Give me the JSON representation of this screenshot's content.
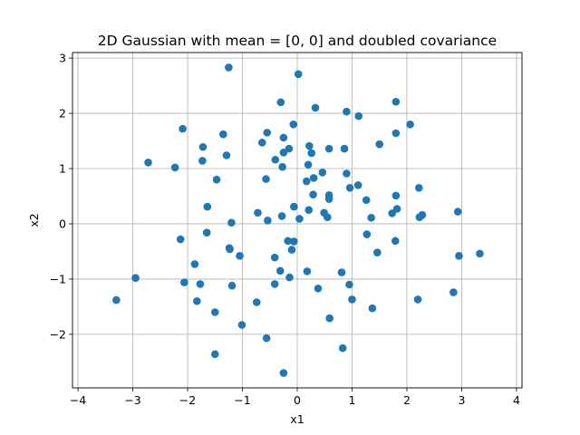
{
  "chart_data": {
    "type": "scatter",
    "title": "2D Gaussian with mean = [0, 0] and doubled covariance",
    "xlabel": "x1",
    "ylabel": "x2",
    "xlim": [
      -4.1,
      4.1
    ],
    "ylim": [
      -2.97,
      3.1
    ],
    "xticks": [
      -4,
      -3,
      -2,
      -1,
      0,
      1,
      2,
      3,
      4
    ],
    "yticks": [
      -2,
      -1,
      0,
      1,
      2,
      3
    ],
    "xtick_labels": [
      "−4",
      "−3",
      "−2",
      "−1",
      "0",
      "1",
      "2",
      "3",
      "4"
    ],
    "ytick_labels": [
      "−2",
      "−1",
      "0",
      "1",
      "2",
      "3"
    ],
    "grid": true,
    "marker_color": "#1f77b4",
    "points": [
      [
        -1.25,
        2.83
      ],
      [
        0.02,
        2.71
      ],
      [
        -0.3,
        2.2
      ],
      [
        0.33,
        2.1
      ],
      [
        1.8,
        2.21
      ],
      [
        0.9,
        2.03
      ],
      [
        1.12,
        1.95
      ],
      [
        -2.09,
        1.72
      ],
      [
        -1.35,
        1.62
      ],
      [
        -0.55,
        1.65
      ],
      [
        -0.07,
        1.8
      ],
      [
        2.06,
        1.8
      ],
      [
        1.8,
        1.64
      ],
      [
        -0.25,
        1.56
      ],
      [
        -0.64,
        1.47
      ],
      [
        -1.72,
        1.39
      ],
      [
        -0.15,
        1.36
      ],
      [
        0.22,
        1.41
      ],
      [
        0.58,
        1.36
      ],
      [
        0.86,
        1.36
      ],
      [
        1.5,
        1.44
      ],
      [
        -0.25,
        1.29
      ],
      [
        0.26,
        1.28
      ],
      [
        -1.29,
        1.24
      ],
      [
        -2.72,
        1.11
      ],
      [
        -1.73,
        1.14
      ],
      [
        -0.4,
        1.16
      ],
      [
        -2.23,
        1.02
      ],
      [
        -0.27,
        1.03
      ],
      [
        0.2,
        1.07
      ],
      [
        0.46,
        0.93
      ],
      [
        0.9,
        0.91
      ],
      [
        0.3,
        0.83
      ],
      [
        -0.57,
        0.81
      ],
      [
        -1.47,
        0.8
      ],
      [
        0.17,
        0.77
      ],
      [
        1.11,
        0.7
      ],
      [
        0.96,
        0.65
      ],
      [
        2.22,
        0.65
      ],
      [
        0.29,
        0.53
      ],
      [
        0.58,
        0.52
      ],
      [
        1.8,
        0.51
      ],
      [
        0.58,
        0.45
      ],
      [
        1.26,
        0.43
      ],
      [
        -0.06,
        0.31
      ],
      [
        -1.64,
        0.31
      ],
      [
        1.82,
        0.27
      ],
      [
        0.21,
        0.25
      ],
      [
        -0.72,
        0.2
      ],
      [
        0.49,
        0.2
      ],
      [
        1.73,
        0.19
      ],
      [
        2.93,
        0.22
      ],
      [
        -0.28,
        0.14
      ],
      [
        0.55,
        0.12
      ],
      [
        2.28,
        0.16
      ],
      [
        2.23,
        0.12
      ],
      [
        1.35,
        0.11
      ],
      [
        -0.54,
        0.06
      ],
      [
        0.04,
        0.09
      ],
      [
        -1.2,
        0.02
      ],
      [
        1.27,
        -0.19
      ],
      [
        -1.65,
        -0.16
      ],
      [
        -2.13,
        -0.28
      ],
      [
        -0.17,
        -0.31
      ],
      [
        -0.06,
        -0.32
      ],
      [
        1.79,
        -0.31
      ],
      [
        -1.24,
        -0.44
      ],
      [
        -1.23,
        -0.46
      ],
      [
        -0.1,
        -0.47
      ],
      [
        3.33,
        -0.54
      ],
      [
        1.46,
        -0.52
      ],
      [
        -1.05,
        -0.58
      ],
      [
        -0.41,
        -0.61
      ],
      [
        2.95,
        -0.58
      ],
      [
        -1.87,
        -0.73
      ],
      [
        -0.31,
        -0.85
      ],
      [
        0.18,
        -0.86
      ],
      [
        0.81,
        -0.88
      ],
      [
        -2.95,
        -0.98
      ],
      [
        -0.14,
        -0.97
      ],
      [
        -2.06,
        -1.06
      ],
      [
        -1.77,
        -1.09
      ],
      [
        -0.41,
        -1.09
      ],
      [
        0.95,
        -1.1
      ],
      [
        -1.19,
        -1.12
      ],
      [
        0.38,
        -1.17
      ],
      [
        2.85,
        -1.24
      ],
      [
        -3.3,
        -1.38
      ],
      [
        -1.83,
        -1.4
      ],
      [
        -0.74,
        -1.42
      ],
      [
        1.0,
        -1.37
      ],
      [
        2.2,
        -1.37
      ],
      [
        1.37,
        -1.53
      ],
      [
        -1.5,
        -1.6
      ],
      [
        0.59,
        -1.71
      ],
      [
        -1.01,
        -1.83
      ],
      [
        -0.56,
        -2.07
      ],
      [
        0.83,
        -2.25
      ],
      [
        -1.5,
        -2.36
      ],
      [
        -0.25,
        -2.7
      ]
    ]
  }
}
